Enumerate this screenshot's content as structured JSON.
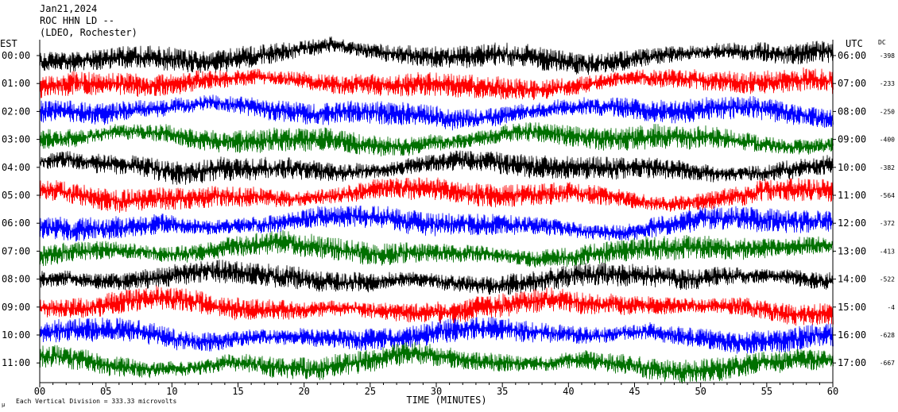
{
  "header": {
    "date": "Jan21,2024",
    "station": "ROC HHN LD --",
    "network": "(LDEO, Rochester)",
    "left_zone": "EST",
    "right_zone": "UTC",
    "dc_label": "DC"
  },
  "footer": {
    "scale_note": "Each Vertical Division = 333.33 microvolts",
    "corner_mark": "µ"
  },
  "chart_data": {
    "type": "line",
    "title": "",
    "xlabel": "TIME (MINUTES)",
    "ylabel": "",
    "xlim": [
      0,
      60
    ],
    "x_ticks": [
      "00",
      "05",
      "10",
      "15",
      "20",
      "25",
      "30",
      "35",
      "40",
      "45",
      "50",
      "55",
      "60"
    ],
    "grid": false,
    "rows": [
      {
        "left": "00:00",
        "right": "06:00",
        "dc": "-398",
        "color": "#000000"
      },
      {
        "left": "01:00",
        "right": "07:00",
        "dc": "-233",
        "color": "#ff0000"
      },
      {
        "left": "02:00",
        "right": "08:00",
        "dc": "-250",
        "color": "#0000ff"
      },
      {
        "left": "03:00",
        "right": "09:00",
        "dc": "-400",
        "color": "#007000"
      },
      {
        "left": "04:00",
        "right": "10:00",
        "dc": "-382",
        "color": "#000000"
      },
      {
        "left": "05:00",
        "right": "11:00",
        "dc": "-564",
        "color": "#ff0000"
      },
      {
        "left": "06:00",
        "right": "12:00",
        "dc": "-372",
        "color": "#0000ff"
      },
      {
        "left": "07:00",
        "right": "13:00",
        "dc": "-413",
        "color": "#007000"
      },
      {
        "left": "08:00",
        "right": "14:00",
        "dc": "-522",
        "color": "#000000"
      },
      {
        "left": "09:00",
        "right": "15:00",
        "dc": "-4",
        "color": "#ff0000"
      },
      {
        "left": "10:00",
        "right": "16:00",
        "dc": "-628",
        "color": "#0000ff"
      },
      {
        "left": "11:00",
        "right": "17:00",
        "dc": "-667",
        "color": "#007000"
      }
    ]
  }
}
